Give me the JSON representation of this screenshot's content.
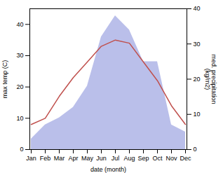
{
  "chart_data": {
    "type": "line",
    "xlabel": "date (month)",
    "ylabel": "max temp (C)",
    "y2label": "med. precipitation\n(kg/m2)",
    "categories": [
      "Jan",
      "Feb",
      "Mar",
      "Apr",
      "May",
      "Jun",
      "Jul",
      "Aug",
      "Sep",
      "Oct",
      "Nov",
      "Dec"
    ],
    "series": [
      {
        "type": "area",
        "axis": "y2",
        "color": "#b3b8e8",
        "values": [
          3,
          7,
          9,
          12,
          18,
          32,
          38,
          34,
          25,
          25,
          7,
          5
        ]
      },
      {
        "type": "line",
        "color": "#c0504d",
        "values": [
          8,
          10,
          17,
          23,
          28,
          33,
          35,
          34,
          28,
          22,
          14,
          8
        ]
      }
    ],
    "ylim": [
      0,
      45
    ],
    "yticks": [
      0,
      10,
      20,
      30,
      40
    ],
    "y2lim": [
      0,
      40
    ],
    "y2ticks": [
      0,
      10,
      20,
      30,
      40
    ]
  }
}
